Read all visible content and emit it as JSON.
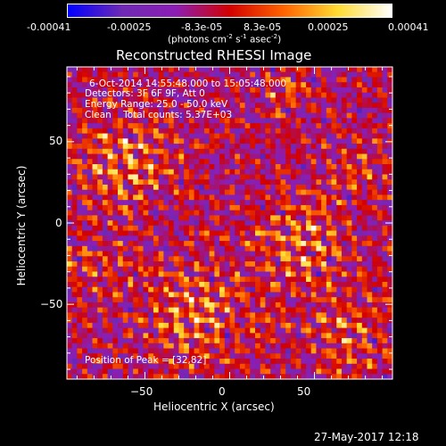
{
  "colorbar": {
    "ticks": [
      "-0.00041",
      "-0.00025",
      "-8.3e-05",
      "8.3e-05",
      "0.00025",
      "0.00041"
    ],
    "units_pre": "(photons cm",
    "units_exp1": "-2",
    "units_mid": " s",
    "units_exp2": "-1",
    "units_post": " asec",
    "units_exp3": "-2",
    "units_close": ")",
    "colors": [
      "#0000ff",
      "#6e2ab4",
      "#8c1eb4",
      "#d20000",
      "#ff6400",
      "#ffdc32",
      "#ffffff"
    ]
  },
  "chart_data": {
    "type": "heatmap",
    "title": "Reconstructed RHESSI Image",
    "xlabel": "Heliocentric X (arcsec)",
    "ylabel": "Heliocentric Y (arcsec)",
    "xlim": [
      -96,
      96
    ],
    "ylim": [
      -96,
      96
    ],
    "xticks": [
      -50,
      0,
      50
    ],
    "yticks": [
      50,
      0,
      -50
    ],
    "xtick_labels": [
      "−50",
      "0",
      "50"
    ],
    "ytick_labels": [
      "50",
      "0",
      "−50"
    ],
    "zlim": [
      -0.00041,
      0.00041
    ],
    "peak": [
      32,
      82
    ],
    "annotations": [
      "6-Oct-2014 14:55:48.000 to 15:05:48.000",
      "Detectors: 3F 6F 9F, Att 0",
      "Energy Range: 25.0 - 50.0 keV",
      "Clean    Total counts: 5.37E+03"
    ],
    "peak_label": "Position of Peak = [32,82]"
  },
  "footer": {
    "timestamp": "27-May-2017 12:18"
  }
}
